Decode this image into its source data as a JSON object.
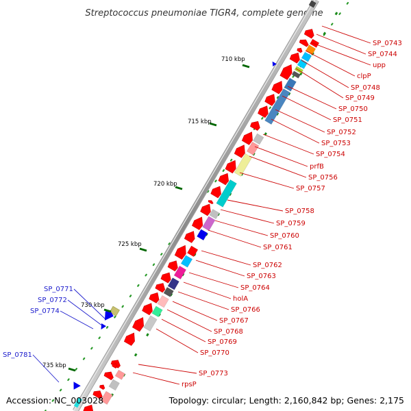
{
  "title": "Streptococcus pneumoniae TIGR4, complete genome",
  "footer": {
    "accession": "Accession: NC_003028",
    "summary": "Topology: circular; Length: 2,160,842 bp; Genes: 2,175"
  },
  "ticks": [
    "710 kbp",
    "715 kbp",
    "720 kbp",
    "725 kbp",
    "730 kbp",
    "735 kbp"
  ],
  "genes_right": [
    "SP_0743",
    "SP_0744",
    "upp",
    "clpP",
    "SP_0748",
    "SP_0749",
    "SP_0750",
    "SP_0751",
    "SP_0752",
    "SP_0753",
    "SP_0754",
    "prfB",
    "SP_0756",
    "SP_0757",
    "SP_0758",
    "SP_0759",
    "SP_0760",
    "SP_0761",
    "SP_0762",
    "SP_0763",
    "SP_0764",
    "holA",
    "SP_0766",
    "SP_0767",
    "SP_0768",
    "SP_0769",
    "SP_0770",
    "SP_0773",
    "rpsP"
  ],
  "genes_left": [
    "SP_0771",
    "SP_0772",
    "SP_0774",
    "SP_0781"
  ],
  "colors": {
    "forward_gene": "#ff0000",
    "reverse_gene": "#0000ee",
    "label_right": "#cc0000",
    "label_left": "#1a1acc",
    "backbone": "#888888",
    "tick": "#007700"
  }
}
